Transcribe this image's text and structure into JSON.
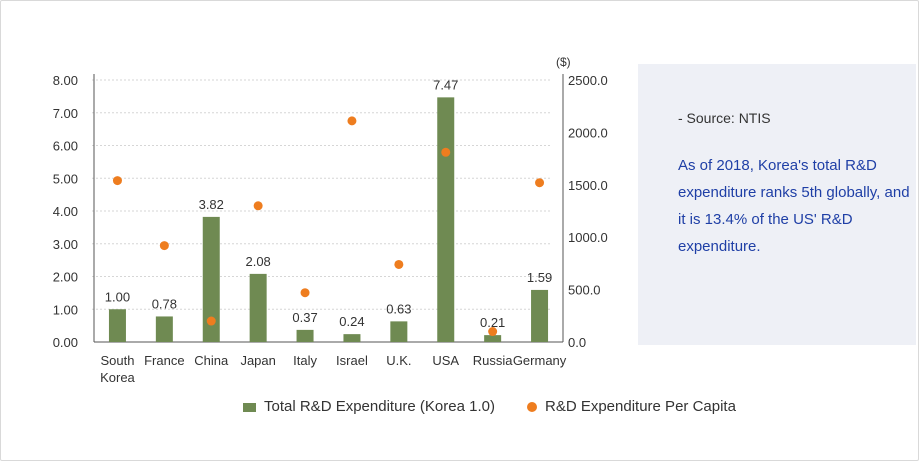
{
  "chart_data": {
    "type": "bar",
    "categories": [
      "South Korea",
      "France",
      "China",
      "Japan",
      "Italy",
      "Israel",
      "U.K.",
      "USA",
      "Russia",
      "Germany"
    ],
    "category_lines": [
      [
        "South",
        "Korea"
      ],
      [
        "France"
      ],
      [
        "China"
      ],
      [
        "Japan"
      ],
      [
        "Italy"
      ],
      [
        "Israel"
      ],
      [
        "U.K."
      ],
      [
        "USA"
      ],
      [
        "Russia"
      ],
      [
        "Germany"
      ]
    ],
    "series": [
      {
        "name": "Total R&D Expenditure (Korea 1.0)",
        "type": "bar",
        "axis": "left",
        "color": "#6f8a52",
        "values": [
          1.0,
          0.78,
          3.82,
          2.08,
          0.37,
          0.24,
          0.63,
          7.47,
          0.21,
          1.59
        ],
        "labels": [
          "1.00",
          "0.78",
          "3.82",
          "2.08",
          "0.37",
          "0.24",
          "0.63",
          "7.47",
          "0.21",
          "1.59"
        ]
      },
      {
        "name": "R&D Expenditure Per Capita",
        "type": "scatter",
        "axis": "right",
        "color": "#ee7d1f",
        "values": [
          1540,
          920,
          200,
          1300,
          470,
          2110,
          740,
          1810,
          100,
          1520
        ]
      }
    ],
    "y_left": {
      "ylim": [
        0,
        8
      ],
      "ticks": [
        "0.00",
        "1.00",
        "2.00",
        "3.00",
        "4.00",
        "5.00",
        "6.00",
        "7.00",
        "8.00"
      ]
    },
    "y_right": {
      "ylim": [
        0,
        2500
      ],
      "ticks": [
        "0.0",
        "500.0",
        "1000.0",
        "1500.0",
        "2000.0",
        "2500.0"
      ],
      "unit": "($)"
    },
    "grid": true,
    "legend": "bottom"
  },
  "legend": {
    "bar_label": "Total R&D Expenditure (Korea 1.0)",
    "dot_label": "R&D Expenditure Per Capita"
  },
  "side_panel": {
    "source": "- Source: NTIS",
    "note": "As of 2018, Korea's total R&D expenditure ranks 5th globally, and it is 13.4% of the US' R&D expenditure."
  }
}
